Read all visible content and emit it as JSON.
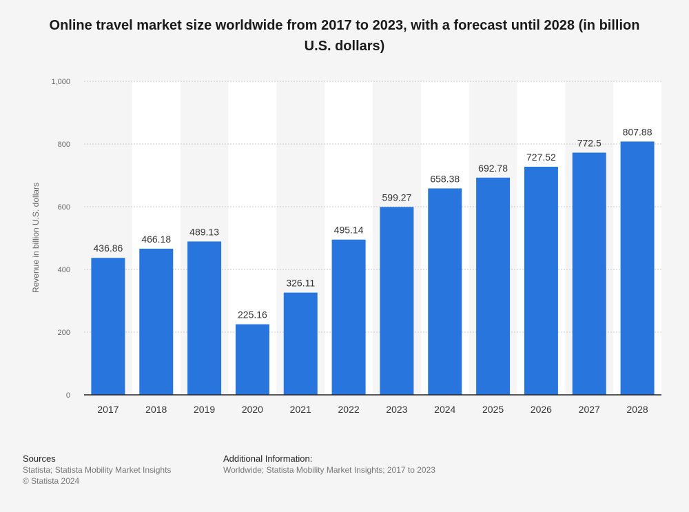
{
  "chart_data": {
    "type": "bar",
    "title": "Online travel market size worldwide from 2017 to 2023, with a forecast until 2028 (in billion U.S. dollars)",
    "ylabel": "Revenue in billion U.S. dollars",
    "xlabel": "",
    "categories": [
      "2017",
      "2018",
      "2019",
      "2020",
      "2021",
      "2022",
      "2023",
      "2024",
      "2025",
      "2026",
      "2027",
      "2028"
    ],
    "values": [
      436.86,
      466.18,
      489.13,
      225.16,
      326.11,
      495.14,
      599.27,
      658.38,
      692.78,
      727.52,
      772.5,
      807.88
    ],
    "value_labels": [
      "436.86",
      "466.18",
      "489.13",
      "225.16",
      "326.11",
      "495.14",
      "599.27",
      "658.38",
      "692.78",
      "727.52",
      "772.5",
      "807.88"
    ],
    "ylim": [
      0,
      1000
    ],
    "yticks": [
      0,
      200,
      400,
      600,
      800,
      1000
    ],
    "ytick_labels": [
      "0",
      "200",
      "400",
      "600",
      "800",
      "1,000"
    ],
    "bar_color": "#2875dd",
    "grid": true
  },
  "footer": {
    "sources_title": "Sources",
    "sources_line1": "Statista; Statista Mobility Market Insights",
    "sources_line2": "© Statista 2024",
    "addinfo_title": "Additional Information:",
    "addinfo_text": "Worldwide; Statista Mobility Market Insights; 2017 to 2023"
  }
}
